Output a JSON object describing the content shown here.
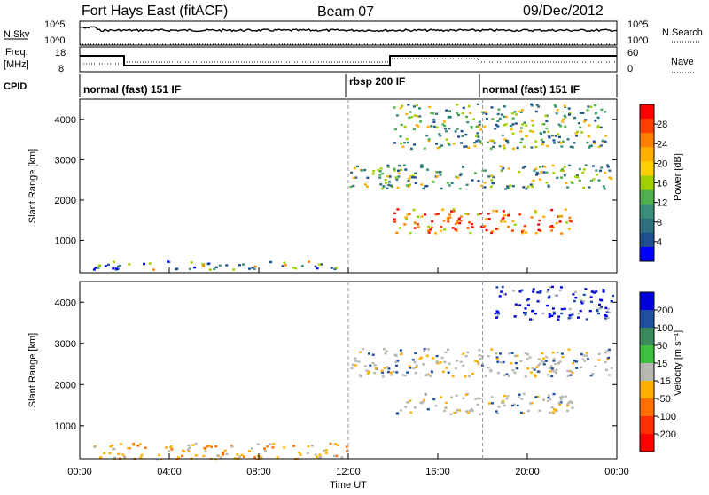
{
  "header": {
    "station": "Fort Hays East (fitACF)",
    "beam": "Beam 07",
    "date": "09/Dec/2012"
  },
  "top_panels": {
    "nsky_label": "N.Sky",
    "nsky_ticks": [
      "10^5",
      "10^0"
    ],
    "nsearch_label": "N.Search",
    "right_ticks_top": [
      "10^5",
      "10^0"
    ],
    "freq_label": "Freq.",
    "freq_unit": "[MHz]",
    "freq_ticks": [
      "18",
      "8"
    ],
    "nave_label": "Nave",
    "nave_ticks": [
      "60",
      "0"
    ],
    "cpid_label": "CPID",
    "cpid_segments": [
      {
        "text": "normal (fast) 151 IF",
        "start_hour": 0,
        "end_hour": 12
      },
      {
        "text": "rbsp 200 IF",
        "start_hour": 12,
        "end_hour": 18
      },
      {
        "text": "normal (fast) 151 IF",
        "start_hour": 18,
        "end_hour": 24
      }
    ]
  },
  "axes": {
    "ylabel": "Slant Range [km]",
    "yticks": [
      "4000",
      "3000",
      "2000",
      "1000"
    ],
    "xlabel": "Time UT",
    "xticks": [
      "00:00",
      "04:00",
      "08:00",
      "12:00",
      "16:00",
      "20:00",
      "00:00"
    ]
  },
  "power_colorbar": {
    "label": "Power [dB]",
    "ticks": [
      "28",
      "24",
      "20",
      "16",
      "12",
      "8",
      "4"
    ],
    "colors": [
      "#ff0000",
      "#ff4000",
      "#ff8000",
      "#ffb000",
      "#ffd000",
      "#a0d000",
      "#50b050",
      "#3a8f7a",
      "#2f7080",
      "#1f4f8f",
      "#0000ff"
    ]
  },
  "velocity_colorbar": {
    "label": "Velocity [m s⁻¹]",
    "ticks": [
      "200",
      "100",
      "50",
      "15",
      "-15",
      "-50",
      "-100",
      "-200"
    ],
    "colors": [
      "#0000dd",
      "#2050a0",
      "#3b8a5e",
      "#40c040",
      "#b8b8b0",
      "#ffb000",
      "#ff7000",
      "#ff3000",
      "#ff0000"
    ]
  },
  "chart_data": {
    "type": "heatmap",
    "x_range_hours": [
      0,
      24
    ],
    "y_range_km": [
      200,
      4500
    ],
    "panels": [
      {
        "name": "power",
        "regions": [
          {
            "t0": 0.5,
            "t1": 12.0,
            "r0": 300,
            "r1": 500,
            "level": "mixed-low"
          },
          {
            "t0": 12.0,
            "t1": 23.8,
            "r0": 2300,
            "r1": 2900,
            "level": "mid"
          },
          {
            "t0": 14.0,
            "t1": 22.0,
            "r0": 1200,
            "r1": 1800,
            "level": "high"
          },
          {
            "t0": 14.0,
            "t1": 23.5,
            "r0": 3300,
            "r1": 4400,
            "level": "mid"
          }
        ]
      },
      {
        "name": "velocity",
        "regions": [
          {
            "t0": 0.5,
            "t1": 12.0,
            "r0": 200,
            "r1": 600,
            "level": "negative"
          },
          {
            "t0": 12.0,
            "t1": 23.8,
            "r0": 2200,
            "r1": 2900,
            "level": "ground"
          },
          {
            "t0": 14.0,
            "t1": 22.0,
            "r0": 1300,
            "r1": 1800,
            "level": "ground"
          },
          {
            "t0": 18.5,
            "t1": 23.8,
            "r0": 3600,
            "r1": 4400,
            "level": "positive"
          }
        ]
      }
    ]
  }
}
